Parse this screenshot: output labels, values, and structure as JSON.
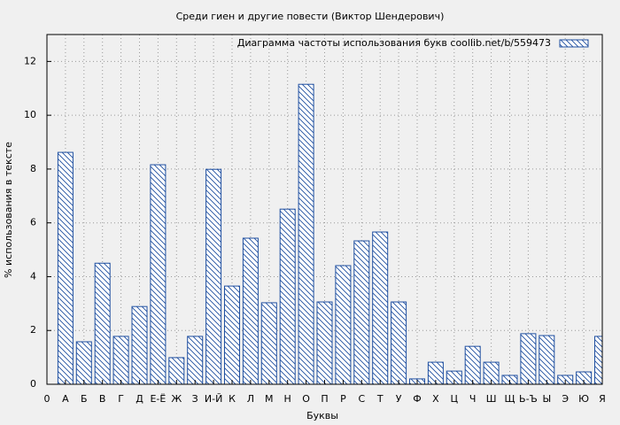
{
  "chart_data": {
    "type": "bar",
    "title": "Среди гиен и другие повести (Виктор Шендерович)",
    "x_label": "Буквы",
    "y_label": "% использования в тексте",
    "legend": "Диаграмма частоты использования букв  coollib.net/b/559473",
    "legend_position": "top-right",
    "color": "#1f4fa0",
    "grid": true,
    "categories": [
      "0",
      "А",
      "Б",
      "В",
      "Г",
      "Д",
      "Е-Ё",
      "Ж",
      "З",
      "И-Й",
      "К",
      "Л",
      "М",
      "Н",
      "О",
      "П",
      "Р",
      "С",
      "Т",
      "У",
      "Ф",
      "Х",
      "Ц",
      "Ч",
      "Ш",
      "Щ",
      "Ь-Ъ",
      "Ы",
      "Э",
      "Ю",
      "Я"
    ],
    "values": [
      null,
      8.62,
      1.58,
      4.5,
      1.78,
      2.89,
      8.16,
      0.99,
      1.78,
      7.99,
      3.65,
      5.43,
      3.03,
      6.51,
      11.15,
      3.06,
      4.41,
      5.33,
      5.66,
      3.06,
      0.2,
      0.82,
      0.49,
      1.41,
      0.82,
      0.33,
      1.88,
      1.81,
      0.33,
      0.46,
      1.78
    ],
    "ylim": [
      0,
      13
    ],
    "yticks": [
      0,
      2,
      4,
      6,
      8,
      10,
      12
    ]
  }
}
